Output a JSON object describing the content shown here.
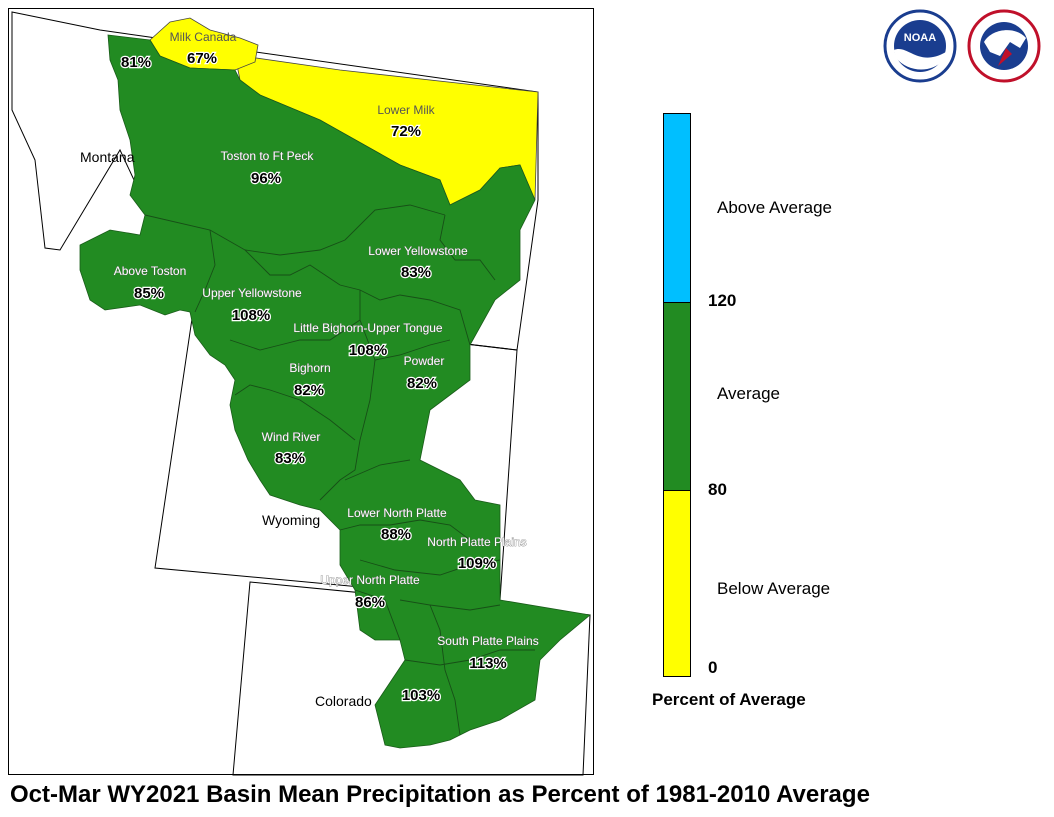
{
  "title": "Oct-Mar WY2021 Basin Mean Precipitation as Percent of 1981-2010 Average",
  "states": [
    "Montana",
    "Wyoming",
    "Colorado"
  ],
  "basins": [
    {
      "name": "Milk Canada",
      "percent": "67%",
      "category": "Below Average"
    },
    {
      "name": "",
      "percent": "81%",
      "category": "Average"
    },
    {
      "name": "Lower Milk",
      "percent": "72%",
      "category": "Below Average"
    },
    {
      "name": "Toston to Ft Peck",
      "percent": "96%",
      "category": "Average"
    },
    {
      "name": "Above Toston",
      "percent": "85%",
      "category": "Average"
    },
    {
      "name": "Lower Yellowstone",
      "percent": "83%",
      "category": "Average"
    },
    {
      "name": "Upper Yellowstone",
      "percent": "108%",
      "category": "Average"
    },
    {
      "name": "Little Bighorn-Upper Tongue",
      "percent": "108%",
      "category": "Average"
    },
    {
      "name": "Bighorn",
      "percent": "82%",
      "category": "Average"
    },
    {
      "name": "Powder",
      "percent": "82%",
      "category": "Average"
    },
    {
      "name": "Wind River",
      "percent": "83%",
      "category": "Average"
    },
    {
      "name": "Lower North Platte",
      "percent": "88%",
      "category": "Average"
    },
    {
      "name": "North Platte Plains",
      "percent": "109%",
      "category": "Average"
    },
    {
      "name": "Upper North Platte",
      "percent": "86%",
      "category": "Average"
    },
    {
      "name": "South Platte Plains",
      "percent": "113%",
      "category": "Average"
    },
    {
      "name": "",
      "percent": "103%",
      "category": "Average"
    }
  ],
  "legend": {
    "title": "Percent of Average",
    "categories": [
      {
        "label": "Above Average",
        "color": "#00bfff"
      },
      {
        "label": "Average",
        "color": "#228b22"
      },
      {
        "label": "Below Average",
        "color": "#ffff00"
      }
    ],
    "ticks": [
      "120",
      "80",
      "0"
    ]
  },
  "logos": [
    "noaa-logo",
    "national-weather-service-logo"
  ],
  "colors": {
    "average": "#228b22",
    "below": "#ffff00",
    "above": "#00bfff"
  }
}
